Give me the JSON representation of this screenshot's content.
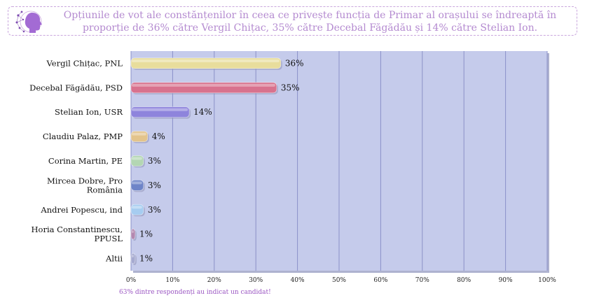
{
  "header": {
    "title": "Opțiunile de vot ale constănțenilor în ceea ce privește funcția de Primar al orașului se îndreaptă în proporție de 36% către Vergil Chițac, 35% către Decebal Făgădău și 14% către Stelian Ion."
  },
  "footnote": "63% dintre respondenți au indicat un candidat!",
  "colors": {
    "plot_bg": "#c5cbeb",
    "grid": "#8a90c8",
    "title": "#b48ad0",
    "footnote": "#9a55c2"
  },
  "chart_data": {
    "type": "bar",
    "orientation": "horizontal",
    "title": "",
    "xlabel": "",
    "ylabel": "",
    "xlim": [
      0,
      100
    ],
    "x_ticks": [
      "0%",
      "10%",
      "20%",
      "30%",
      "40%",
      "50%",
      "60%",
      "70%",
      "80%",
      "90%",
      "100%"
    ],
    "grid": true,
    "categories": [
      [
        "Vergil Chițac, PNL"
      ],
      [
        "Decebal Făgădău, PSD"
      ],
      [
        "Stelian Ion, USR"
      ],
      [
        "Claudiu Palaz, PMP"
      ],
      [
        "Corina Martin, PE"
      ],
      [
        "Mircea Dobre, Pro",
        "România"
      ],
      [
        "Andrei Popescu, ind"
      ],
      [
        "Horia Constantinescu,",
        "PPUSL"
      ],
      [
        "Altii"
      ]
    ],
    "values": [
      36,
      35,
      14,
      4,
      3,
      3,
      3,
      1,
      1
    ],
    "value_labels": [
      "36%",
      "35%",
      "14%",
      "4%",
      "3%",
      "3%",
      "3%",
      "1%",
      "1%"
    ],
    "bar_colors": [
      "#e8dd9c",
      "#d8728e",
      "#8e84dc",
      "#e3c48c",
      "#b3d6b3",
      "#6e84c8",
      "#a6ccf0",
      "#b488b0",
      "#a6aad0"
    ]
  }
}
